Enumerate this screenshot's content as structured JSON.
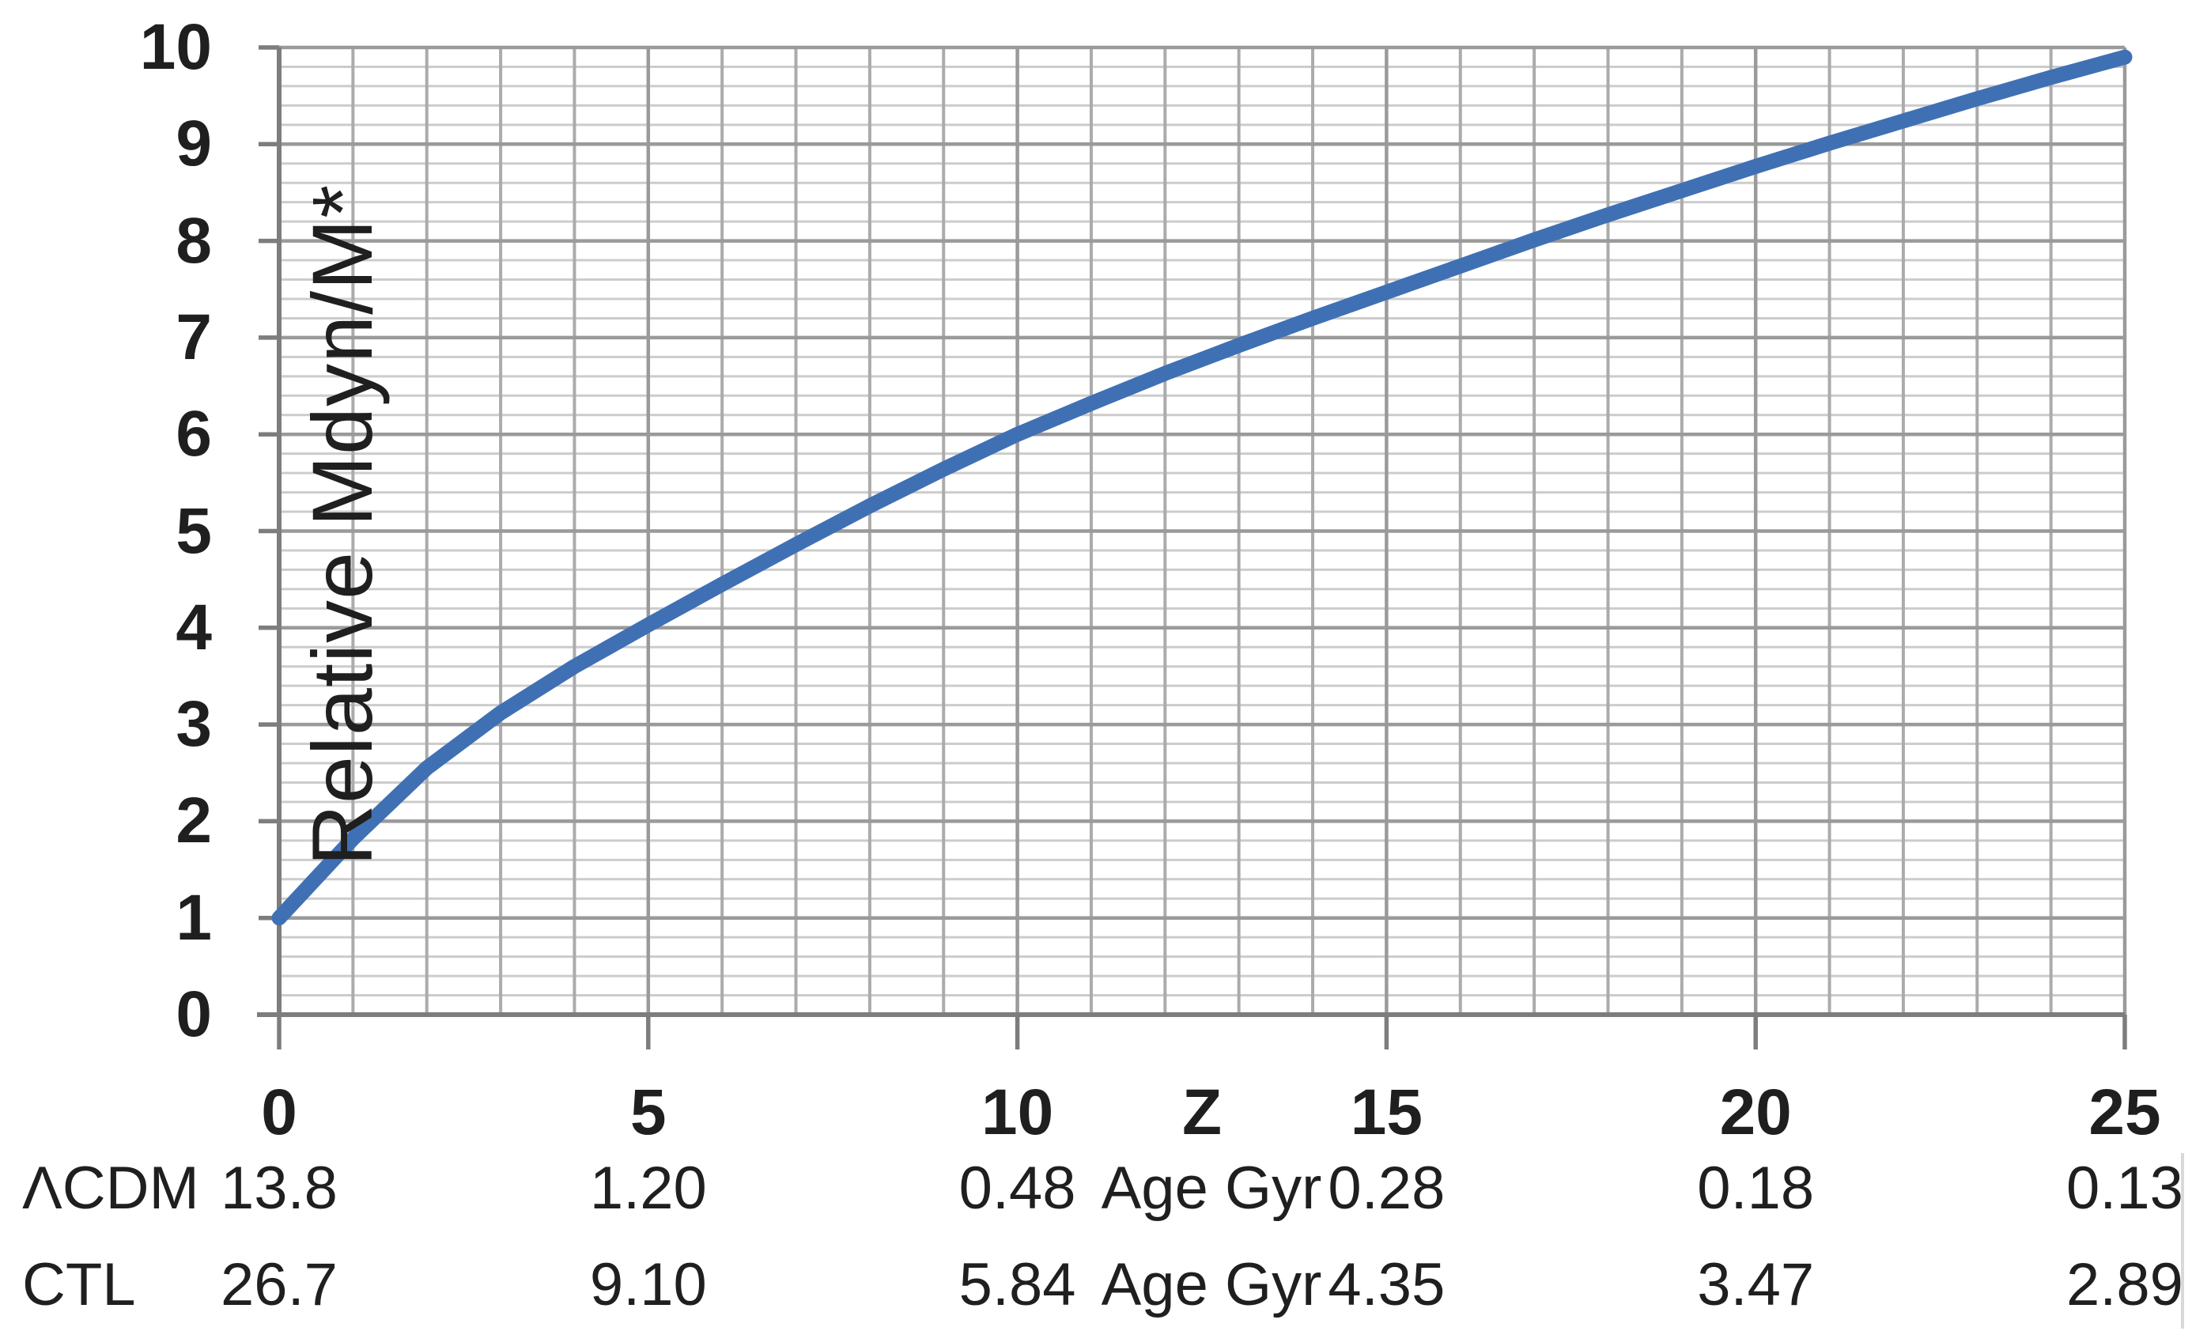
{
  "chart_data": {
    "type": "line",
    "title": "",
    "ylabel": "Relative Mdyn/M*",
    "xlabel": "Z",
    "xlim": [
      0,
      25
    ],
    "ylim": [
      0,
      10
    ],
    "x_ticks": [
      0,
      5,
      10,
      15,
      20,
      25
    ],
    "y_ticks": [
      0,
      1,
      2,
      3,
      4,
      5,
      6,
      7,
      8,
      9,
      10
    ],
    "grid": {
      "minor_y_step": 0.2,
      "minor_x_step": 1,
      "major_y_step": 1,
      "major_x_step": 5,
      "grid_on": true
    },
    "legend": "none",
    "series": [
      {
        "name": "Relative Mdyn/M*",
        "color": "#4070b4",
        "points": [
          [
            0,
            1.0
          ],
          [
            1,
            1.82
          ],
          [
            2,
            2.55
          ],
          [
            3,
            3.12
          ],
          [
            4,
            3.6
          ],
          [
            5,
            4.03
          ],
          [
            6,
            4.45
          ],
          [
            7,
            4.86
          ],
          [
            8,
            5.26
          ],
          [
            9,
            5.64
          ],
          [
            10,
            6.0
          ],
          [
            11,
            6.32
          ],
          [
            12,
            6.63
          ],
          [
            13,
            6.92
          ],
          [
            14,
            7.2
          ],
          [
            15,
            7.47
          ],
          [
            16,
            7.74
          ],
          [
            17,
            8.01
          ],
          [
            18,
            8.27
          ],
          [
            19,
            8.52
          ],
          [
            20,
            8.77
          ],
          [
            21,
            9.01
          ],
          [
            22,
            9.24
          ],
          [
            23,
            9.47
          ],
          [
            24,
            9.69
          ],
          [
            25,
            9.9
          ]
        ]
      }
    ],
    "age_rows": [
      {
        "label": "ΛCDM",
        "unit": "Age Gyr",
        "values": [
          "13.8",
          "1.20",
          "0.48",
          "0.28",
          "0.18",
          "0.13"
        ]
      },
      {
        "label": "CTL",
        "unit": "Age Gyr",
        "values": [
          "26.7",
          "9.10",
          "5.84",
          "4.35",
          "3.47",
          "2.89"
        ]
      }
    ]
  },
  "colors": {
    "line": "#4070b4",
    "grid_minor": "#cccccc",
    "grid_major": "#9a9a9a",
    "axis": "#7d7d7d",
    "text": "#1f1f1f",
    "edge_line": "#d9d9d9"
  }
}
